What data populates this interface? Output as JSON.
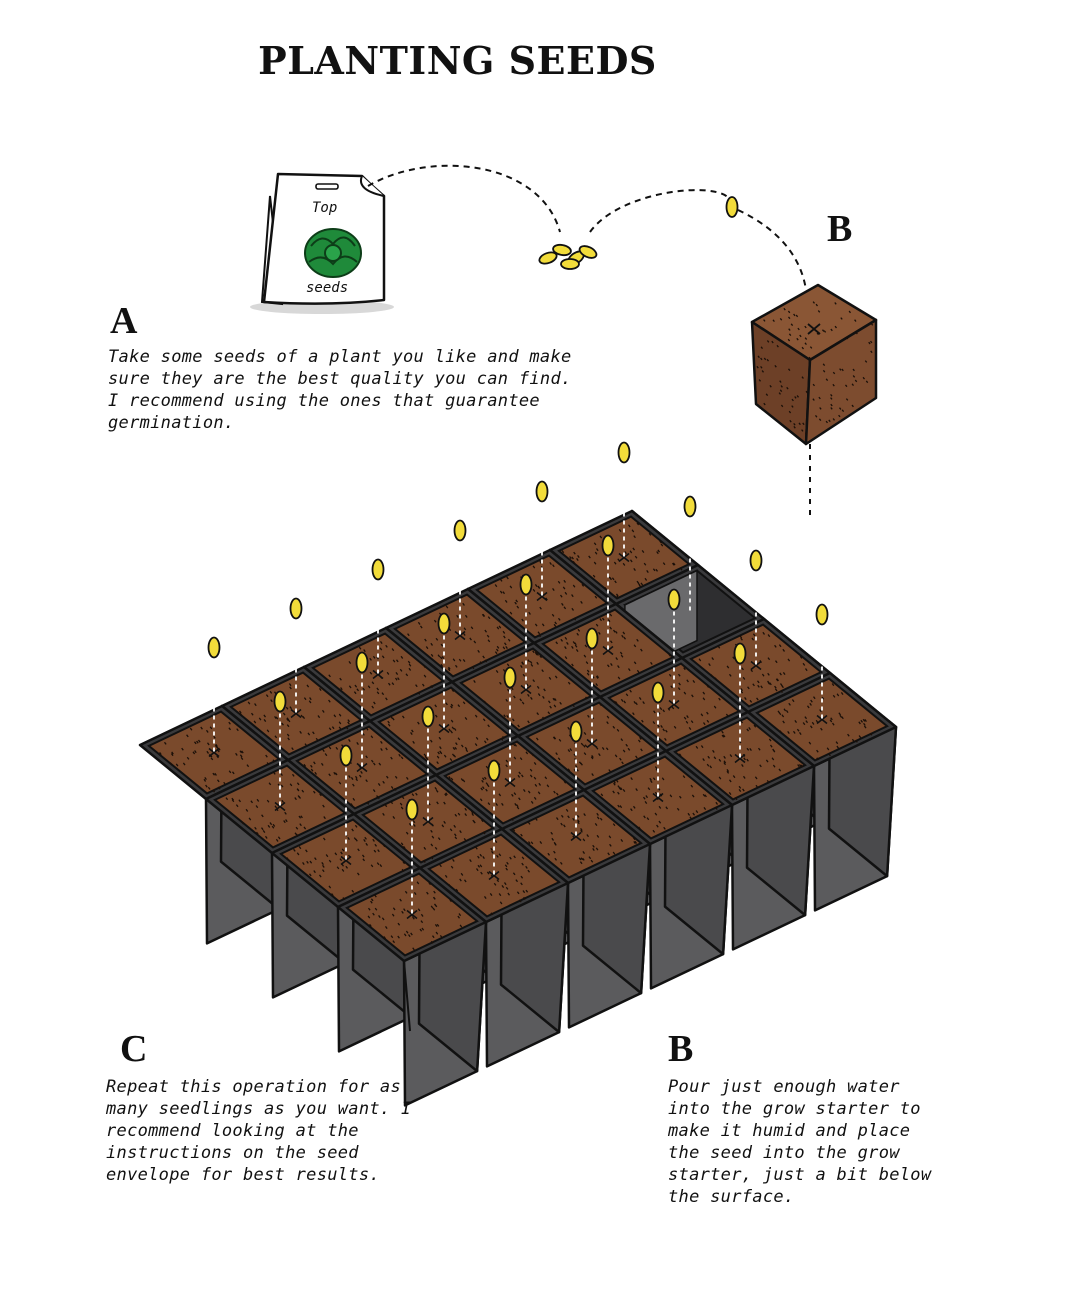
{
  "title": "PLANTING SEEDS",
  "steps": {
    "a": {
      "label": "A",
      "text": "Take some seeds of a plant you like and make sure they are the best quality you can find. I recommend using the ones that guarantee germination."
    },
    "b_top": {
      "label": "B"
    },
    "b": {
      "label": "B",
      "text": "Pour just enough water into the grow starter to make it humid and place the seed into the grow starter, just a bit below the surface."
    },
    "c": {
      "label": "C",
      "text": "Repeat this operation for as many seedlings as you want. I recommend looking at the instructions on the seed envelope for best results."
    }
  },
  "envelope": {
    "top_text": "Top",
    "bottom_text": "seeds"
  },
  "colors": {
    "soil": "#7a4a2c",
    "pot_face": "#5b5b5d",
    "pot_side": "#4a4a4c",
    "pot_dark": "#3a3a3c",
    "seed": "#f2dc3a",
    "leaf": "#1f8a3a"
  }
}
